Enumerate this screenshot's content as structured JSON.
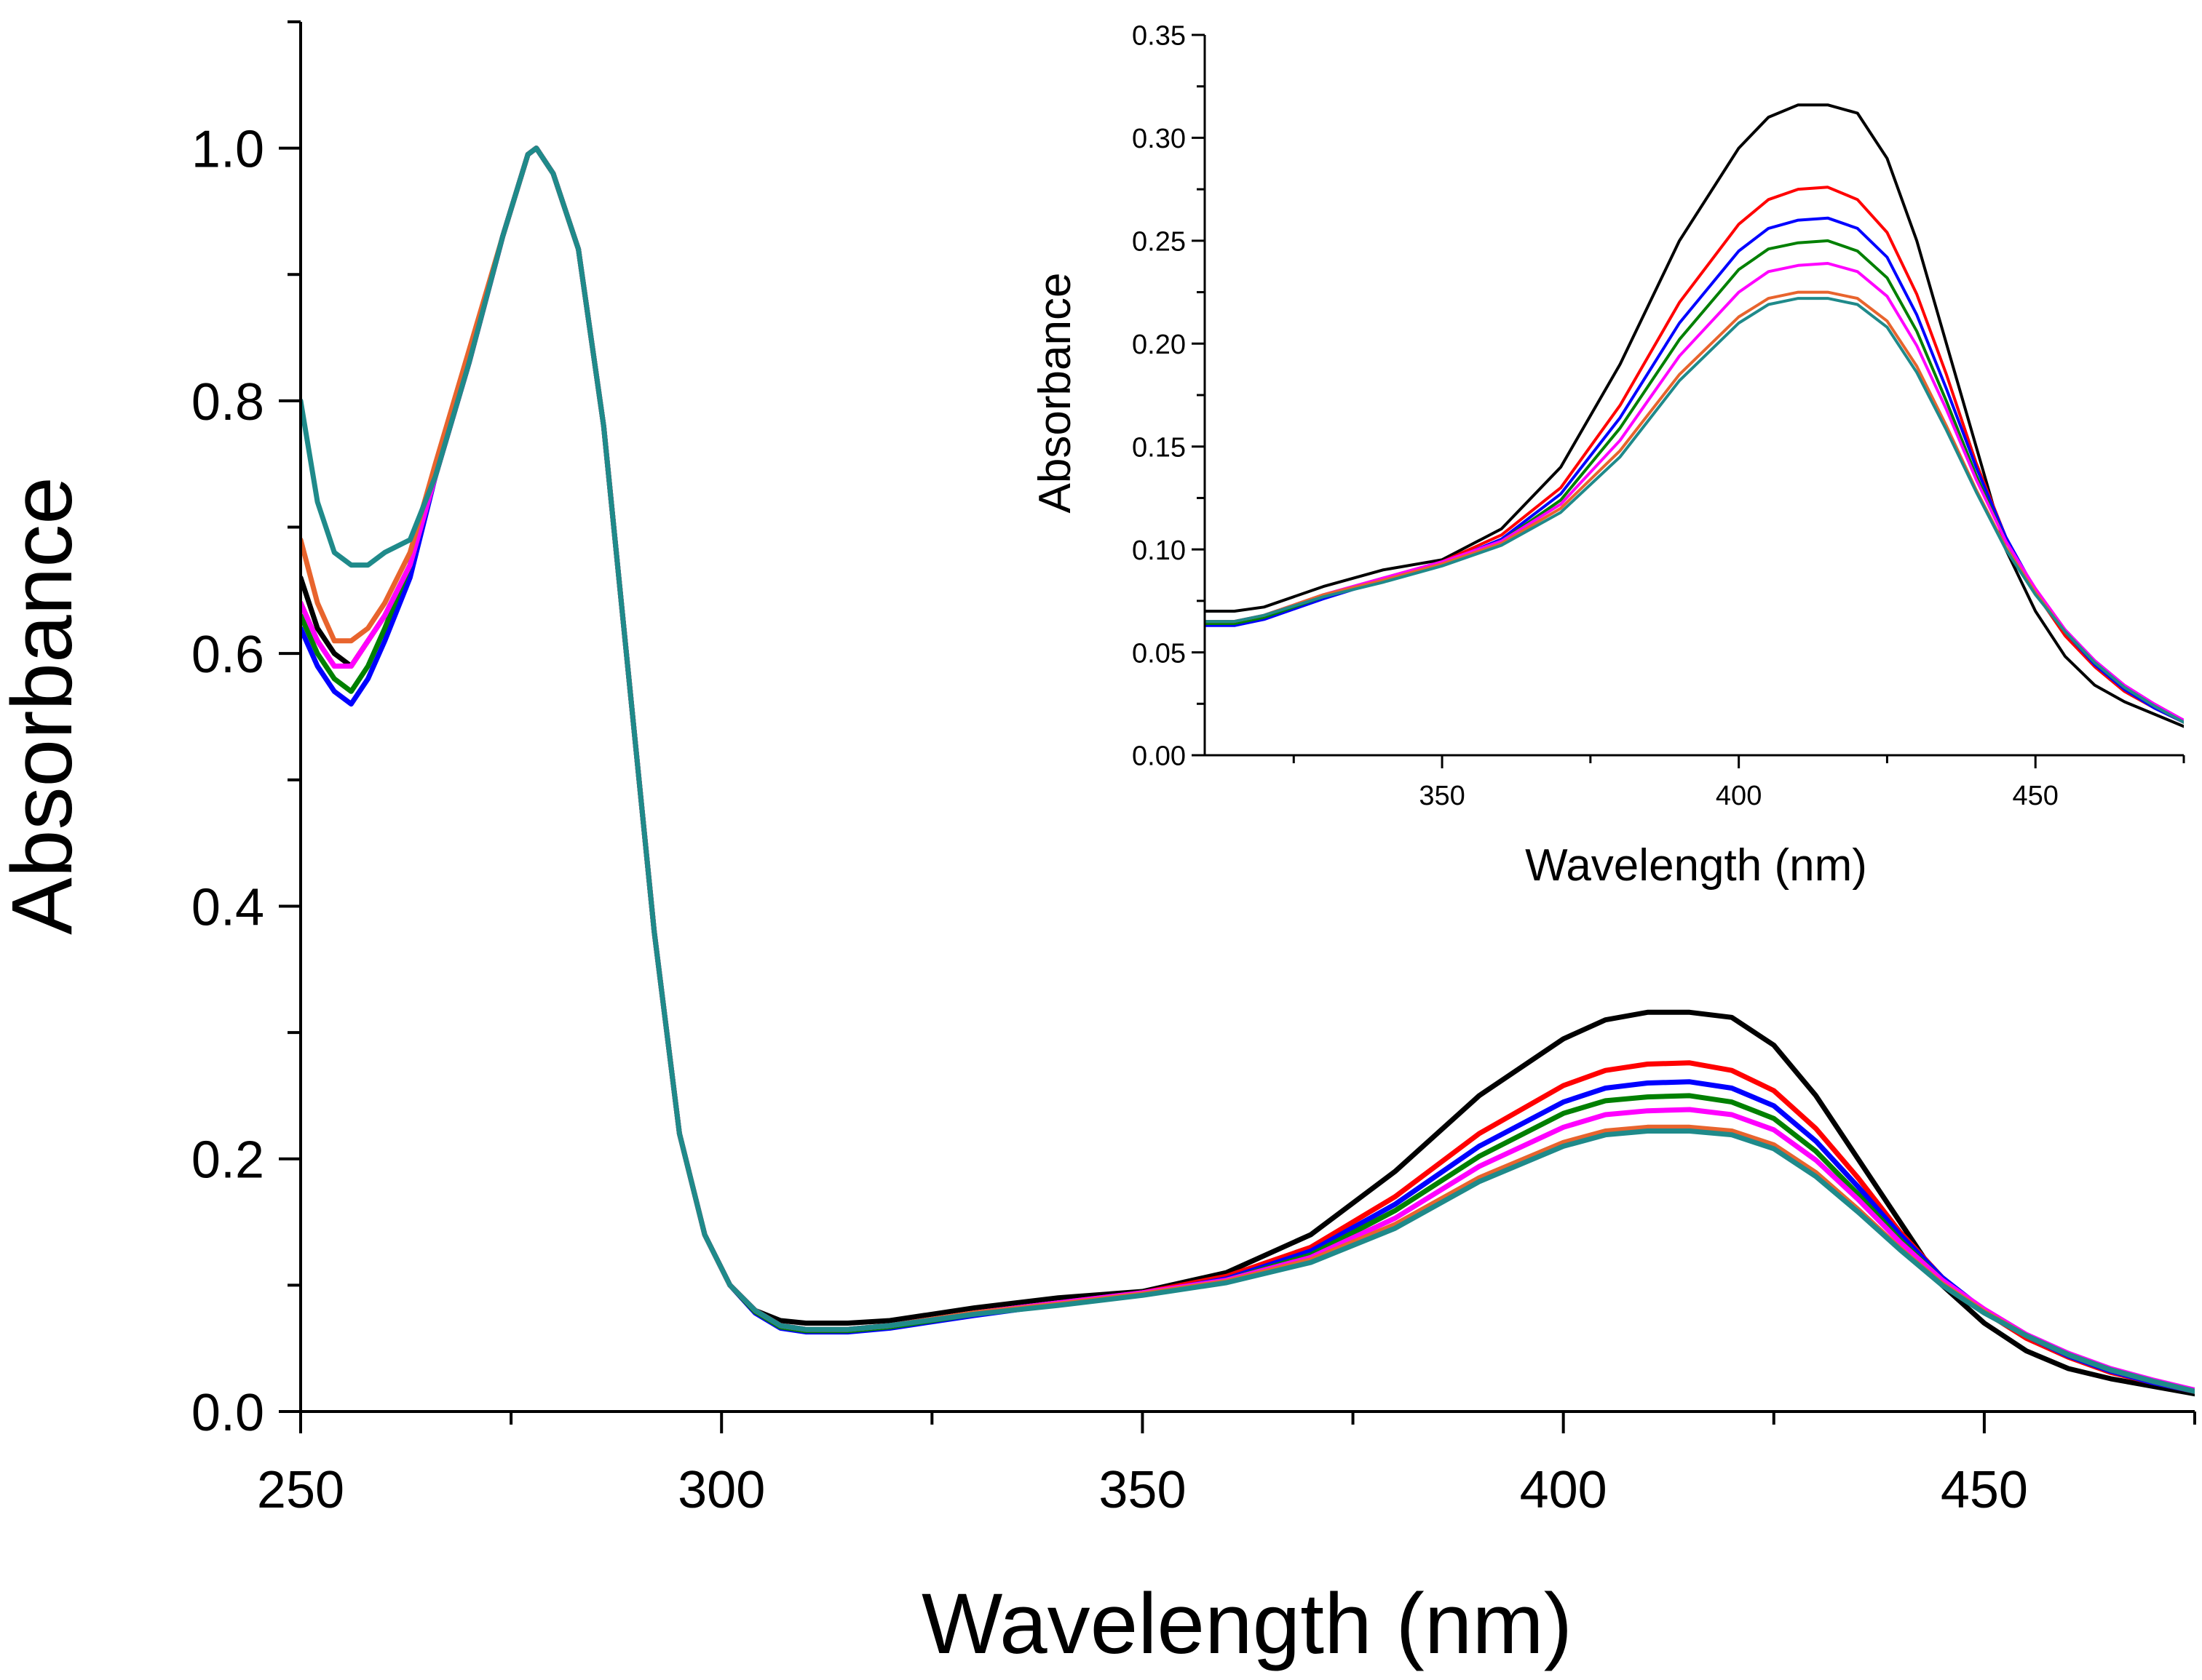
{
  "chart_data": [
    {
      "id": "main",
      "type": "line",
      "xlabel": "Wavelength (nm)",
      "ylabel": "Absorbance",
      "xlim": [
        250,
        475
      ],
      "ylim": [
        0.0,
        1.1
      ],
      "xticks": [
        250,
        300,
        350,
        400,
        450
      ],
      "xtick_labels": [
        "250",
        "300",
        "350",
        "400",
        "450"
      ],
      "yticks": [
        0.0,
        0.2,
        0.4,
        0.6,
        0.8,
        1.0
      ],
      "ytick_labels": [
        "0.0",
        "0.2",
        "0.4",
        "0.6",
        "0.8",
        "1.0"
      ],
      "x": [
        250,
        252,
        254,
        256,
        258,
        260,
        263,
        266,
        270,
        274,
        277,
        278,
        280,
        283,
        286,
        289,
        292,
        295,
        298,
        301,
        304,
        307,
        310,
        315,
        320,
        330,
        340,
        350,
        360,
        370,
        380,
        390,
        400,
        405,
        410,
        415,
        420,
        425,
        430,
        435,
        440,
        445,
        450,
        455,
        460,
        465,
        470,
        475
      ],
      "series": [
        {
          "name": "black",
          "color": "#000000",
          "values": [
            0.66,
            0.62,
            0.6,
            0.59,
            0.61,
            0.63,
            0.67,
            0.74,
            0.83,
            0.93,
            0.995,
            1.0,
            0.98,
            0.92,
            0.78,
            0.58,
            0.38,
            0.22,
            0.14,
            0.1,
            0.08,
            0.072,
            0.07,
            0.07,
            0.072,
            0.082,
            0.09,
            0.095,
            0.11,
            0.14,
            0.19,
            0.25,
            0.295,
            0.31,
            0.316,
            0.316,
            0.312,
            0.29,
            0.25,
            0.2,
            0.15,
            0.1,
            0.07,
            0.048,
            0.034,
            0.026,
            0.02,
            0.014
          ]
        },
        {
          "name": "red",
          "color": "#ff0000",
          "values": [
            0.64,
            0.61,
            0.59,
            0.59,
            0.61,
            0.63,
            0.67,
            0.74,
            0.83,
            0.93,
            0.995,
            1.0,
            0.98,
            0.92,
            0.78,
            0.58,
            0.38,
            0.22,
            0.14,
            0.1,
            0.08,
            0.068,
            0.065,
            0.065,
            0.068,
            0.078,
            0.086,
            0.094,
            0.107,
            0.13,
            0.17,
            0.22,
            0.258,
            0.27,
            0.275,
            0.276,
            0.27,
            0.254,
            0.224,
            0.185,
            0.142,
            0.106,
            0.079,
            0.058,
            0.043,
            0.031,
            0.023,
            0.016
          ]
        },
        {
          "name": "blue",
          "color": "#0000ff",
          "values": [
            0.62,
            0.59,
            0.57,
            0.56,
            0.58,
            0.61,
            0.66,
            0.74,
            0.83,
            0.93,
            0.995,
            1.0,
            0.98,
            0.92,
            0.78,
            0.58,
            0.38,
            0.22,
            0.14,
            0.1,
            0.078,
            0.066,
            0.063,
            0.063,
            0.066,
            0.076,
            0.085,
            0.093,
            0.105,
            0.127,
            0.164,
            0.21,
            0.245,
            0.256,
            0.26,
            0.261,
            0.256,
            0.242,
            0.214,
            0.178,
            0.14,
            0.106,
            0.08,
            0.06,
            0.044,
            0.032,
            0.023,
            0.016
          ]
        },
        {
          "name": "green",
          "color": "#008000",
          "values": [
            0.63,
            0.6,
            0.58,
            0.57,
            0.59,
            0.62,
            0.67,
            0.74,
            0.83,
            0.93,
            0.995,
            1.0,
            0.98,
            0.92,
            0.78,
            0.58,
            0.38,
            0.22,
            0.14,
            0.1,
            0.079,
            0.067,
            0.064,
            0.064,
            0.067,
            0.077,
            0.085,
            0.093,
            0.104,
            0.124,
            0.159,
            0.202,
            0.236,
            0.246,
            0.249,
            0.25,
            0.245,
            0.232,
            0.206,
            0.172,
            0.136,
            0.104,
            0.08,
            0.06,
            0.045,
            0.033,
            0.024,
            0.017
          ]
        },
        {
          "name": "magenta",
          "color": "#ff00ff",
          "values": [
            0.64,
            0.61,
            0.59,
            0.59,
            0.61,
            0.63,
            0.67,
            0.74,
            0.83,
            0.93,
            0.995,
            1.0,
            0.98,
            0.92,
            0.78,
            0.58,
            0.38,
            0.22,
            0.14,
            0.1,
            0.08,
            0.068,
            0.065,
            0.065,
            0.068,
            0.078,
            0.086,
            0.094,
            0.104,
            0.122,
            0.153,
            0.194,
            0.225,
            0.235,
            0.238,
            0.239,
            0.235,
            0.223,
            0.199,
            0.168,
            0.134,
            0.104,
            0.081,
            0.061,
            0.046,
            0.034,
            0.025,
            0.017
          ]
        },
        {
          "name": "orange",
          "color": "#e8642d",
          "values": [
            0.69,
            0.64,
            0.61,
            0.61,
            0.62,
            0.64,
            0.68,
            0.75,
            0.84,
            0.93,
            0.995,
            1.0,
            0.98,
            0.92,
            0.78,
            0.58,
            0.38,
            0.22,
            0.14,
            0.1,
            0.08,
            0.068,
            0.065,
            0.065,
            0.068,
            0.078,
            0.085,
            0.093,
            0.103,
            0.12,
            0.148,
            0.185,
            0.213,
            0.222,
            0.225,
            0.225,
            0.222,
            0.211,
            0.189,
            0.16,
            0.129,
            0.101,
            0.079,
            0.06,
            0.045,
            0.033,
            0.024,
            0.016
          ]
        },
        {
          "name": "teal",
          "color": "#1f8a8a",
          "values": [
            0.8,
            0.72,
            0.68,
            0.67,
            0.67,
            0.68,
            0.69,
            0.74,
            0.83,
            0.93,
            0.995,
            1.0,
            0.98,
            0.92,
            0.78,
            0.58,
            0.38,
            0.22,
            0.14,
            0.1,
            0.08,
            0.068,
            0.065,
            0.065,
            0.068,
            0.077,
            0.084,
            0.092,
            0.102,
            0.118,
            0.145,
            0.182,
            0.21,
            0.219,
            0.222,
            0.222,
            0.219,
            0.208,
            0.186,
            0.158,
            0.128,
            0.1,
            0.078,
            0.06,
            0.045,
            0.033,
            0.024,
            0.016
          ]
        }
      ]
    },
    {
      "id": "inset",
      "type": "line",
      "xlabel": "Wavelength (nm)",
      "ylabel": "Absorbance",
      "xlim": [
        310,
        475
      ],
      "ylim": [
        0.0,
        0.35
      ],
      "xticks": [
        350,
        400,
        450
      ],
      "xtick_labels": [
        "350",
        "400",
        "450"
      ],
      "yticks": [
        0.0,
        0.05,
        0.1,
        0.15,
        0.2,
        0.25,
        0.3,
        0.35
      ],
      "ytick_labels": [
        "0.00",
        "0.05",
        "0.10",
        "0.15",
        "0.20",
        "0.25",
        "0.30",
        "0.35"
      ],
      "note": "same series as main chart, shown over 310-475 nm"
    }
  ]
}
